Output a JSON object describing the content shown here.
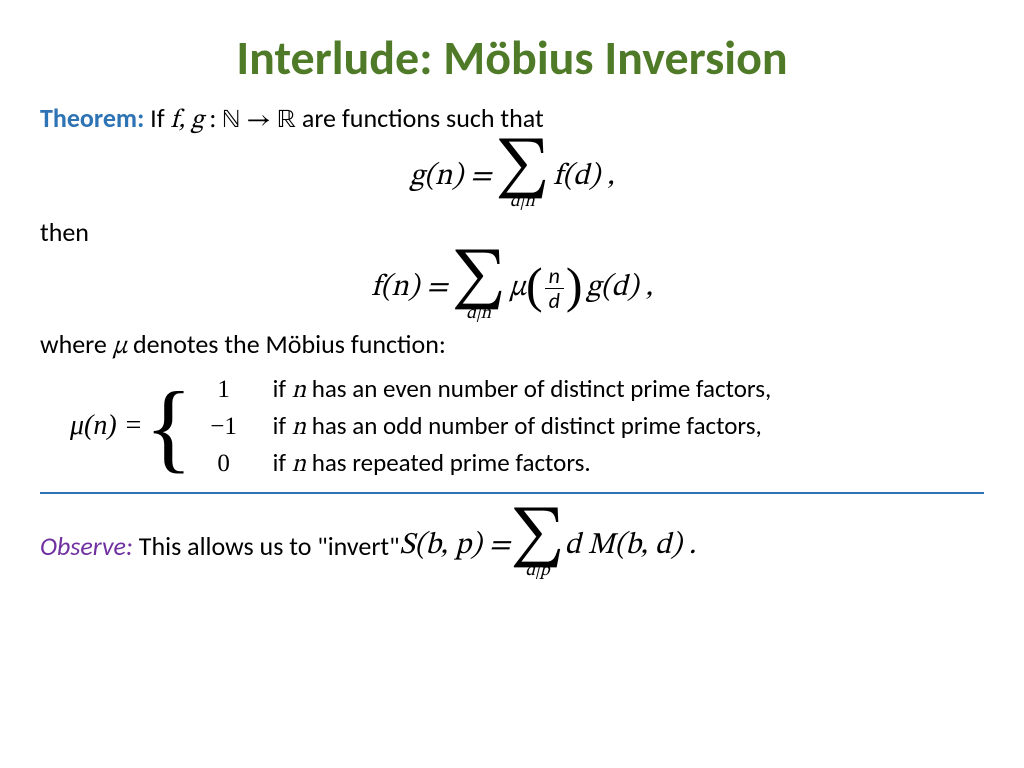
{
  "colors": {
    "title": "#4f7a28",
    "theorem": "#2e74b5",
    "observe": "#7030a0",
    "hr": "#2e74b5",
    "text": "#000000"
  },
  "title": "Interlude: Möbius Inversion",
  "theorem_label": "Theorem:",
  "theorem_intro_a": " If ",
  "fg": "f, g",
  "colon": " :   ",
  "nat": "ℕ",
  "arrow": " → ",
  "real": "ℝ",
  "theorem_intro_b": " are functions such that",
  "eq1_lhs": "g(n) = ",
  "sum_sub": "d|n",
  "eq1_rhs": " f(d) ,",
  "then_text": "then",
  "eq2_lhs": "f(n) = ",
  "mu": " μ ",
  "frac_num": "n",
  "frac_den": "d",
  "eq2_rhs": " g(d) ,",
  "where_a": "where ",
  "where_mu": "μ",
  "where_b": " denotes the Möbius function:",
  "mu_n_eq": "μ(n) = ",
  "case1_val": "1",
  "case1_txt_a": "if ",
  "case1_n": "n",
  "case1_txt_b": " has an even number of distinct prime factors,",
  "case2_val": "−1",
  "case2_txt_a": "if ",
  "case2_n": "n",
  "case2_txt_b": " has an odd number of distinct prime factors,",
  "case3_val": "0",
  "case3_txt_a": "if ",
  "case3_n": "n",
  "case3_txt_b": " has repeated prime factors.",
  "observe_label": "Observe:",
  "observe_a": " This allows us to \"invert\"  ",
  "obs_lhs": "S(b, p) = ",
  "obs_sub": "d|p",
  "obs_rhs": " d M(b, d) ."
}
